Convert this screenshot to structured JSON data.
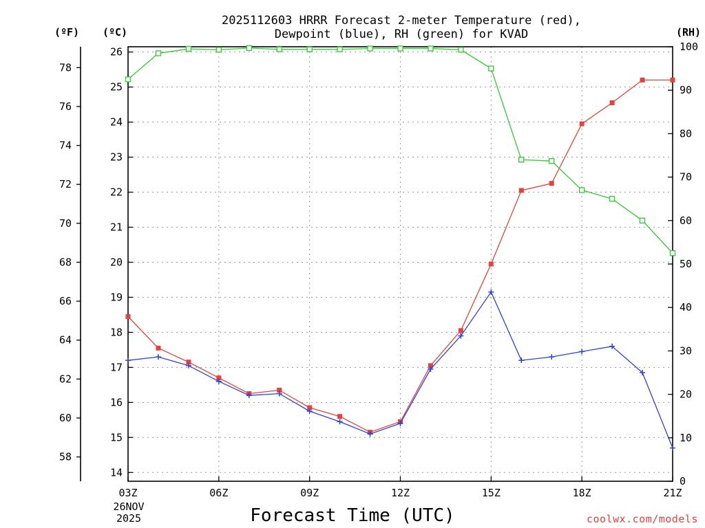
{
  "chart_data": {
    "type": "line",
    "title_line1": "2025112603 HRRR Forecast 2-meter Temperature (red),",
    "title_line2": "Dewpoint (blue), RH (green) for KVAD",
    "xlabel": "Forecast Time (UTC)",
    "credit": "coolwx.com/models",
    "date_line1": "26NOV",
    "date_line2": "2025",
    "left_unit_f": "(ºF)",
    "left_unit_c": "(ºC)",
    "right_unit": "(RH)",
    "x": [
      0,
      1,
      2,
      3,
      4,
      5,
      6,
      7,
      8,
      9,
      10,
      11,
      12,
      13,
      14,
      15,
      16,
      17,
      18
    ],
    "xticks": [
      0,
      3,
      6,
      9,
      12,
      15,
      18
    ],
    "xtick_labels": [
      "03Z",
      "06Z",
      "09Z",
      "12Z",
      "15Z",
      "18Z",
      "21Z"
    ],
    "ylim_c": [
      13.75,
      26.15
    ],
    "yticks_c": [
      14,
      15,
      16,
      17,
      18,
      19,
      20,
      21,
      22,
      23,
      24,
      25,
      26
    ],
    "yticks_f": [
      58,
      60,
      62,
      64,
      66,
      68,
      70,
      72,
      74,
      76,
      78
    ],
    "ylim_rh": [
      0,
      100
    ],
    "yticks_rh": [
      0,
      10,
      20,
      30,
      40,
      50,
      60,
      70,
      80,
      90,
      100
    ],
    "grid": true,
    "series": [
      {
        "name": "Temperature",
        "color": "#e8413c",
        "axis": "c",
        "marker": "filled-square",
        "values": [
          18.45,
          17.55,
          17.15,
          16.7,
          16.25,
          16.35,
          15.85,
          15.6,
          15.15,
          15.45,
          17.05,
          18.05,
          19.95,
          22.05,
          22.25,
          23.95,
          24.55,
          25.2,
          25.2
        ]
      },
      {
        "name": "Dewpoint",
        "color": "#2f3fe0",
        "axis": "c",
        "marker": "plus",
        "values": [
          17.2,
          17.3,
          17.05,
          16.6,
          16.2,
          16.25,
          15.75,
          15.45,
          15.1,
          15.4,
          16.95,
          17.9,
          19.15,
          17.2,
          17.3,
          17.45,
          17.6,
          16.85,
          14.7
        ]
      },
      {
        "name": "RH",
        "color": "#2ecc2e",
        "axis": "rh",
        "marker": "open-square",
        "values": [
          92.5,
          98.5,
          99.5,
          99.3,
          99.7,
          99.4,
          99.4,
          99.4,
          99.6,
          99.6,
          99.6,
          99.3,
          95,
          74,
          73.7,
          67,
          65,
          60,
          52.5
        ]
      }
    ]
  }
}
